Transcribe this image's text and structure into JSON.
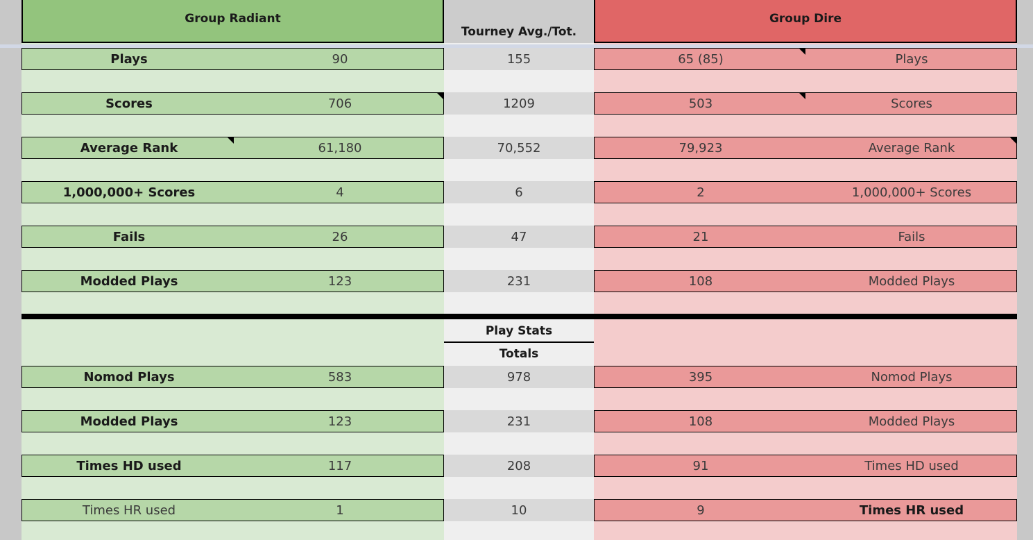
{
  "header": {
    "left_title": "Group Radiant",
    "mid_title": "Tourney Avg./Tot.",
    "right_title": "Group Dire"
  },
  "section1": {
    "rows": [
      {
        "label": "Plays",
        "left": "90",
        "mid": "155",
        "right": "65 (85)"
      },
      {
        "label": "Scores",
        "left": "706",
        "mid": "1209",
        "right": "503"
      },
      {
        "label": "Average Rank",
        "left": "61,180",
        "mid": "70,552",
        "right": "79,923"
      },
      {
        "label": "1,000,000+ Scores",
        "left": "4",
        "mid": "6",
        "right": "2"
      },
      {
        "label": "Fails",
        "left": "26",
        "mid": "47",
        "right": "21"
      },
      {
        "label": "Modded Plays",
        "left": "123",
        "mid": "231",
        "right": "108"
      }
    ]
  },
  "section2": {
    "title": "Play Stats",
    "subtitle": "Totals",
    "rows": [
      {
        "label": "Nomod Plays",
        "left": "583",
        "mid": "978",
        "right": "395"
      },
      {
        "label": "Modded Plays",
        "left": "123",
        "mid": "231",
        "right": "108"
      },
      {
        "label": "Times HD used",
        "left": "117",
        "mid": "208",
        "right": "91"
      },
      {
        "label": "Times HR used",
        "left": "1",
        "mid": "10",
        "right": "9"
      }
    ]
  },
  "colors": {
    "radiant_header": "#93c47d",
    "radiant_cell": "#b6d7a8",
    "radiant_bg": "#d9ead3",
    "dire_header": "#e06666",
    "dire_cell": "#ea9999",
    "dire_bg": "#f4cccc",
    "mid_header": "#cccccc",
    "mid_cell": "#d9d9d9"
  }
}
